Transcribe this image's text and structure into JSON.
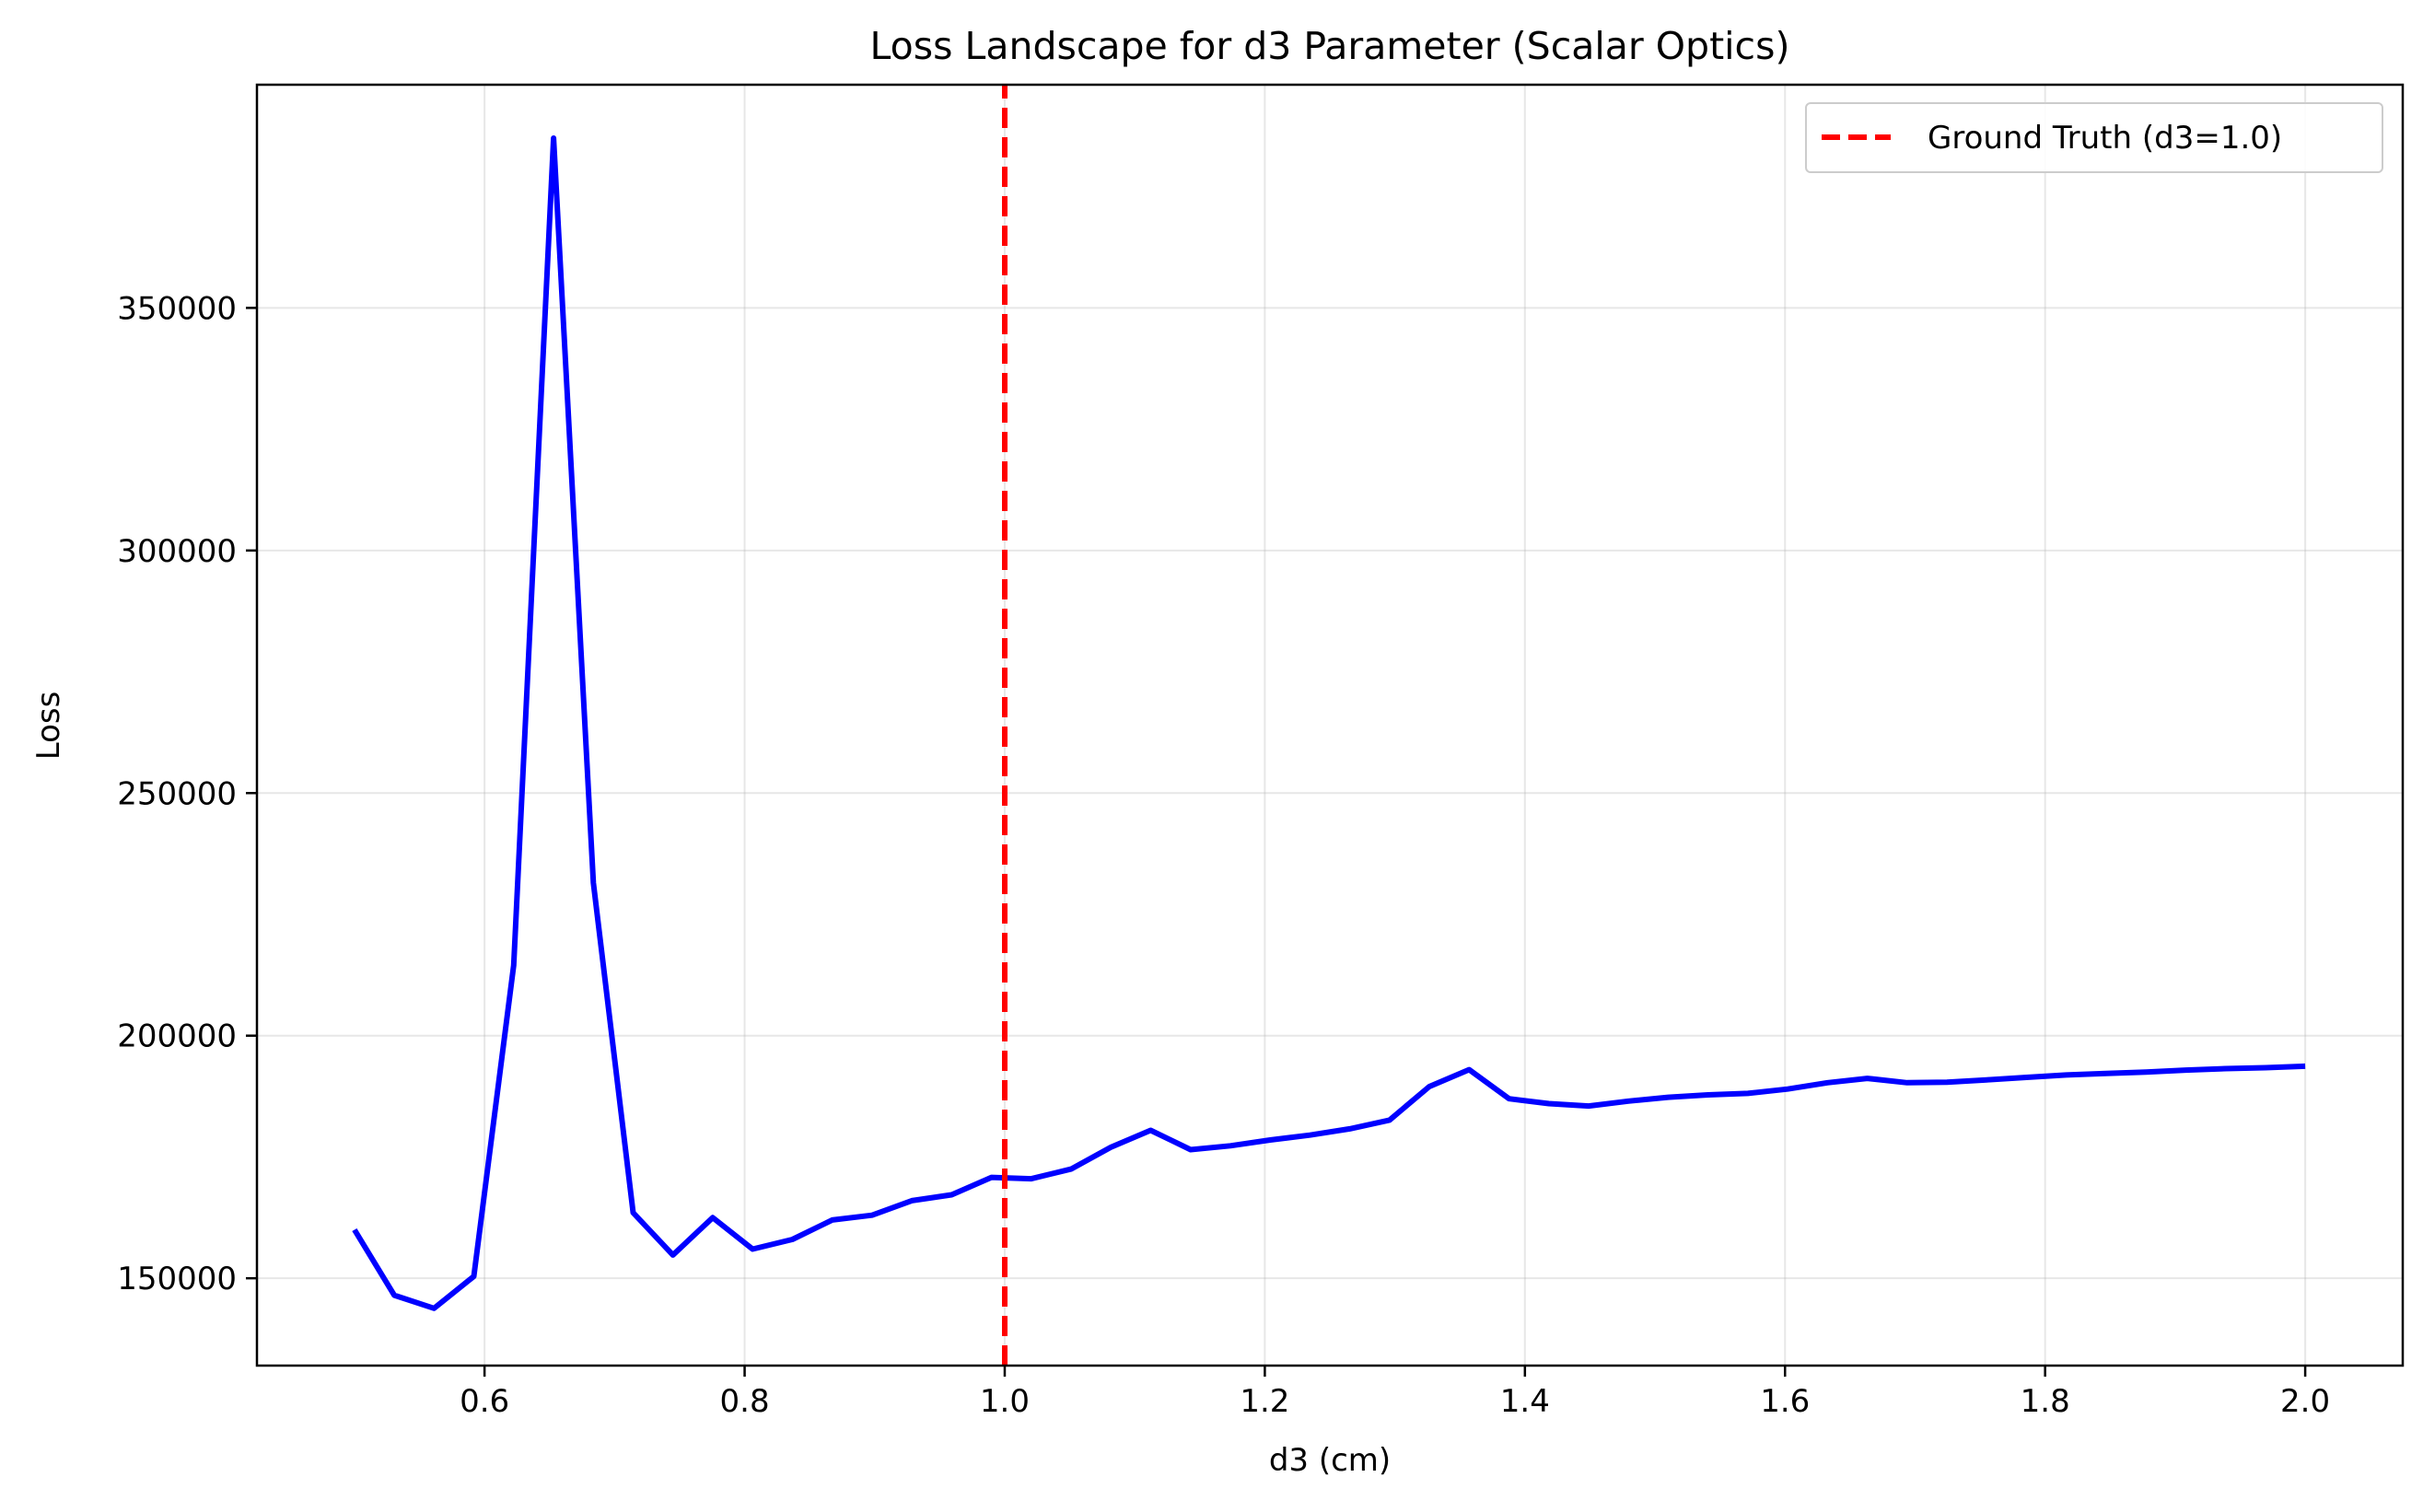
{
  "chart_data": {
    "type": "line",
    "title": "Loss Landscape for d3 Parameter (Scalar Optics)",
    "xlabel": "d3 (cm)",
    "ylabel": "Loss",
    "xlim": [
      0.425,
      2.075
    ],
    "ylim": [
      132000,
      396000
    ],
    "x_ticks": [
      0.6,
      0.8,
      1.0,
      1.2,
      1.4,
      1.6,
      1.8,
      2.0
    ],
    "x_tick_labels": [
      "0.6",
      "0.8",
      "1.0",
      "1.2",
      "1.4",
      "1.6",
      "1.8",
      "2.0"
    ],
    "y_ticks": [
      150000,
      200000,
      250000,
      300000,
      350000
    ],
    "y_tick_labels": [
      "150000",
      "200000",
      "250000",
      "300000",
      "350000"
    ],
    "grid": true,
    "legend_position": "top-right",
    "series": [
      {
        "name": "",
        "color": "#0000ff",
        "style": "solid",
        "x": [
          0.5,
          0.5306,
          0.5612,
          0.5918,
          0.6224,
          0.6531,
          0.6837,
          0.7143,
          0.7449,
          0.7755,
          0.8061,
          0.8367,
          0.8673,
          0.898,
          0.9286,
          0.9592,
          0.9898,
          1.0204,
          1.051,
          1.0816,
          1.1122,
          1.1429,
          1.1735,
          1.2041,
          1.2347,
          1.2653,
          1.2959,
          1.3265,
          1.3571,
          1.3878,
          1.4184,
          1.449,
          1.4796,
          1.5102,
          1.5408,
          1.5714,
          1.602,
          1.6327,
          1.6633,
          1.6939,
          1.7245,
          1.7551,
          1.7857,
          1.8163,
          1.8469,
          1.8776,
          1.9082,
          1.9388,
          1.9694,
          2.0
        ],
        "y": [
          160000,
          146500,
          143800,
          150400,
          214500,
          385000,
          231500,
          163500,
          154800,
          162500,
          156000,
          158000,
          162000,
          163000,
          166000,
          167200,
          170800,
          170500,
          172500,
          177000,
          180500,
          176500,
          177300,
          178500,
          179500,
          180800,
          182600,
          189500,
          193000,
          187000,
          186000,
          185500,
          186500,
          187300,
          187800,
          188100,
          189000,
          190300,
          191200,
          190300,
          190400,
          190900,
          191400,
          191900,
          192200,
          192500,
          192900,
          193200,
          193400,
          193700
        ]
      },
      {
        "name": "Ground Truth (d3=1.0)",
        "color": "#ff0000",
        "style": "dashed",
        "x": [
          1.0,
          1.0
        ],
        "y": [
          132000,
          396000
        ]
      }
    ]
  }
}
